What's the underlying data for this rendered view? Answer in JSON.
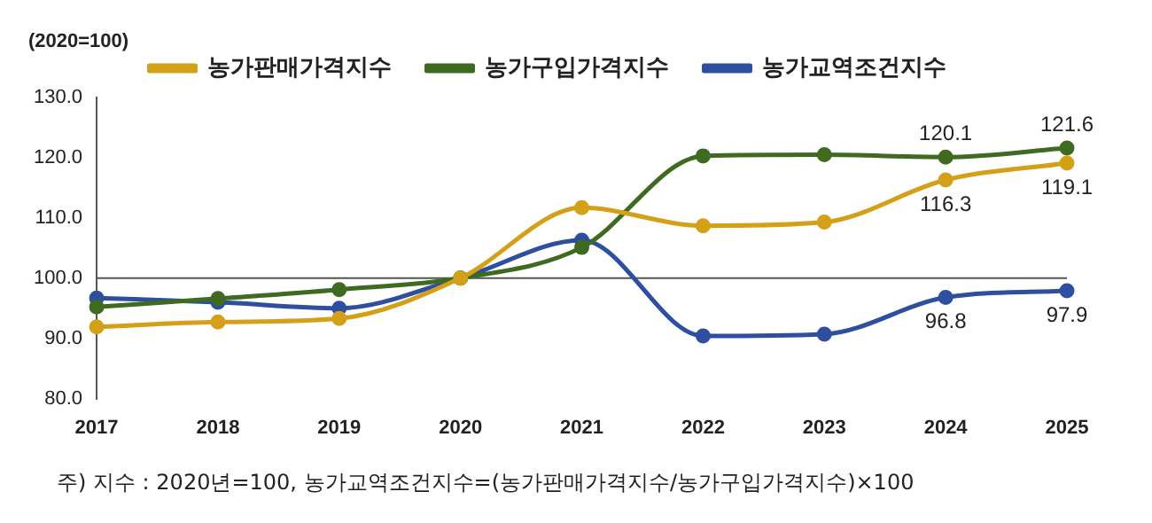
{
  "chart_data": {
    "type": "line",
    "ylabel": "(2020=100)",
    "categories": [
      "2017",
      "2018",
      "2019",
      "2020",
      "2021",
      "2022",
      "2023",
      "2024",
      "2025"
    ],
    "series": [
      {
        "name": "농가판매가격지수",
        "color": "#d4a017",
        "values": [
          91.9,
          92.7,
          93.3,
          100,
          111.7,
          108.7,
          109.3,
          116.3,
          119.1
        ],
        "value_labels": [
          null,
          null,
          null,
          null,
          null,
          null,
          null,
          "116.3",
          "119.1"
        ]
      },
      {
        "name": "농가구입가격지수",
        "color": "#3f6b21",
        "values": [
          95.2,
          96.6,
          98.1,
          100,
          105.1,
          120.3,
          120.5,
          120.1,
          121.6
        ],
        "value_labels": [
          null,
          null,
          null,
          null,
          null,
          null,
          null,
          "120.1",
          "121.6"
        ]
      },
      {
        "name": "농가교역조건지수",
        "color": "#2e4fa0",
        "values": [
          96.7,
          96.0,
          95.0,
          100,
          106.3,
          90.4,
          90.7,
          96.8,
          97.9
        ],
        "value_labels": [
          null,
          null,
          null,
          null,
          null,
          null,
          null,
          "96.8",
          "97.9"
        ]
      }
    ],
    "ylim": [
      80,
      130
    ],
    "yticks": [
      {
        "value": 80,
        "label": "80.0"
      },
      {
        "value": 90,
        "label": "90.0"
      },
      {
        "value": 100,
        "label": "100.0"
      },
      {
        "value": 110,
        "label": "110.0"
      },
      {
        "value": 120,
        "label": "120.0"
      },
      {
        "value": 130,
        "label": "130.0"
      }
    ],
    "ref_lines": [
      {
        "axis": "y",
        "value": 100,
        "color": "#555555"
      }
    ],
    "legend": "top",
    "marker": "circle",
    "line_style": "solid",
    "grid": false,
    "annotations": [
      "주) 지수 : 2020년=100, 농가교역조건지수=(농가판매가격지수/농가구입가격지수)×100"
    ]
  }
}
